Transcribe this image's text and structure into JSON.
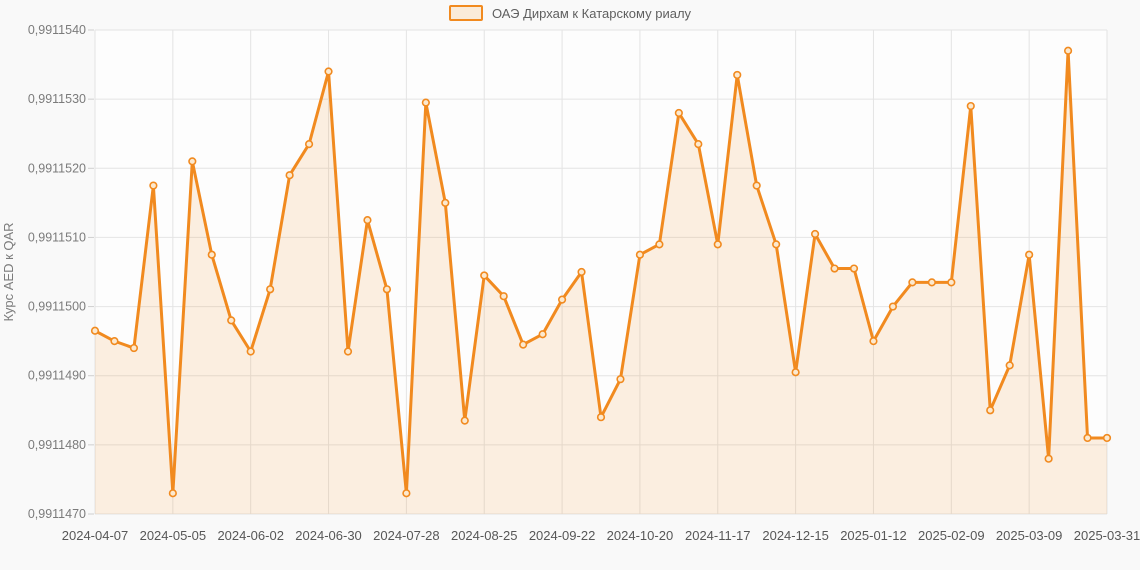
{
  "legend": {
    "label": "ОАЭ Дирхам к Катарскому риалу"
  },
  "y_axis": {
    "title": "Курс AED к QAR",
    "tick_labels": [
      "0,9911540",
      "0,9911530",
      "0,9911520",
      "0,9911510",
      "0,9911500",
      "0,9911490",
      "0,9911480",
      "0,9911470"
    ]
  },
  "x_axis": {
    "tick_labels": [
      "2024-04-07",
      "2024-05-05",
      "2024-06-02",
      "2024-06-30",
      "2024-07-28",
      "2024-08-25",
      "2024-09-22",
      "2024-10-20",
      "2024-11-17",
      "2024-12-15",
      "2025-01-12",
      "2025-02-09",
      "2025-03-09",
      "2025-03-31"
    ],
    "tick_indices": [
      0,
      4,
      8,
      12,
      16,
      20,
      24,
      28,
      32,
      36,
      40,
      44,
      48,
      52
    ]
  },
  "colors": {
    "line": "#f18a1f",
    "area": "rgba(241,138,31,0.13)",
    "marker_fill": "#fce9cf",
    "grid": "#e4e4e4",
    "tick": "#cfcfcf",
    "page_bg": "#f9f9f9",
    "plot_bg": "#fdfdfd",
    "y_text": "#7b7b7b",
    "x_text": "#575757"
  },
  "chart_data": {
    "type": "area",
    "title": "",
    "ylabel": "Курс AED к QAR",
    "ylim": [
      0.991147,
      0.991154
    ],
    "grid": true,
    "legend_position": "top",
    "series_name": "ОАЭ Дирхам к Катарскому риалу",
    "x": [
      "2024-04-07",
      "2024-04-14",
      "2024-04-21",
      "2024-04-28",
      "2024-05-05",
      "2024-05-12",
      "2024-05-19",
      "2024-05-26",
      "2024-06-02",
      "2024-06-09",
      "2024-06-16",
      "2024-06-23",
      "2024-06-30",
      "2024-07-07",
      "2024-07-14",
      "2024-07-21",
      "2024-07-28",
      "2024-08-04",
      "2024-08-11",
      "2024-08-18",
      "2024-08-25",
      "2024-09-01",
      "2024-09-08",
      "2024-09-15",
      "2024-09-22",
      "2024-09-29",
      "2024-10-06",
      "2024-10-13",
      "2024-10-20",
      "2024-10-27",
      "2024-11-03",
      "2024-11-10",
      "2024-11-17",
      "2024-11-24",
      "2024-12-01",
      "2024-12-08",
      "2024-12-15",
      "2024-12-22",
      "2024-12-29",
      "2025-01-05",
      "2025-01-12",
      "2025-01-19",
      "2025-01-26",
      "2025-02-02",
      "2025-02-09",
      "2025-02-16",
      "2025-02-23",
      "2025-03-02",
      "2025-03-09",
      "2025-03-16",
      "2025-03-23",
      "2025-03-30",
      "2025-03-31"
    ],
    "values": [
      0.99114965,
      0.9911495,
      0.9911494,
      0.99115175,
      0.9911473,
      0.9911521,
      0.99115075,
      0.9911498,
      0.99114935,
      0.99115025,
      0.9911519,
      0.99115235,
      0.9911534,
      0.99114935,
      0.99115125,
      0.99115025,
      0.9911473,
      0.99115295,
      0.9911515,
      0.99114835,
      0.99115045,
      0.99115015,
      0.99114945,
      0.9911496,
      0.9911501,
      0.9911505,
      0.9911484,
      0.99114895,
      0.99115075,
      0.9911509,
      0.9911528,
      0.99115235,
      0.9911509,
      0.99115335,
      0.99115175,
      0.9911509,
      0.99114905,
      0.99115105,
      0.99115055,
      0.99115055,
      0.9911495,
      0.99115,
      0.99115035,
      0.99115035,
      0.99115035,
      0.9911529,
      0.9911485,
      0.99114915,
      0.99115075,
      0.9911478,
      0.9911537,
      0.9911481,
      0.9911481
    ]
  }
}
